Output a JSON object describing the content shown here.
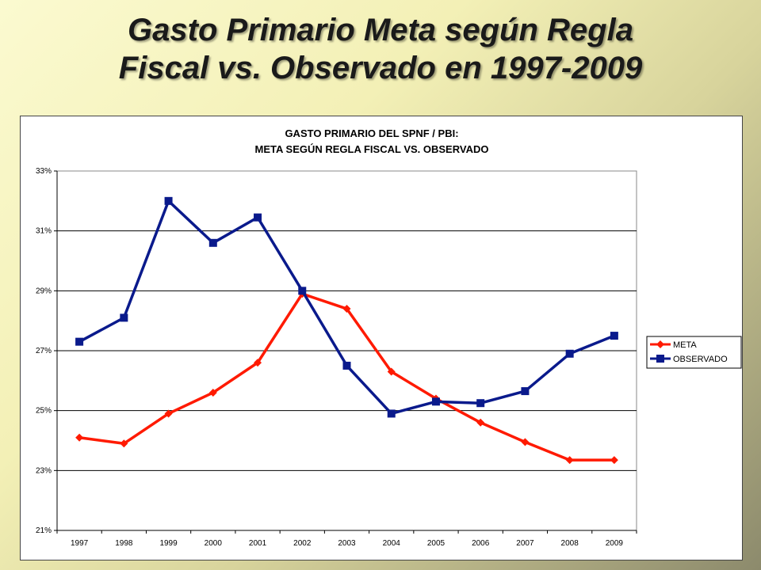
{
  "slide": {
    "title_line1": "Gasto Primario Meta según Regla",
    "title_line2": "Fiscal vs. Observado en 1997-2009"
  },
  "colors": {
    "meta": "#ff1a00",
    "observado": "#0a1a8c"
  },
  "chart_data": {
    "type": "line",
    "title_line1": "GASTO PRIMARIO DEL SPNF / PBI:",
    "title_line2": "META SEGÚN REGLA FISCAL VS. OBSERVADO",
    "categories": [
      "1997",
      "1998",
      "1999",
      "2000",
      "2001",
      "2002",
      "2003",
      "2004",
      "2005",
      "2006",
      "2007",
      "2008",
      "2009"
    ],
    "y_ticks": [
      "21%",
      "23%",
      "25%",
      "27%",
      "29%",
      "31%",
      "33%"
    ],
    "ylim": [
      21,
      33
    ],
    "grid": "horizontal",
    "legend_position": "right",
    "series": [
      {
        "name": "META",
        "marker": "diamond",
        "values": [
          24.1,
          23.9,
          24.9,
          25.6,
          26.6,
          28.9,
          28.4,
          26.3,
          25.4,
          24.6,
          23.95,
          23.35,
          23.35
        ]
      },
      {
        "name": "OBSERVADO",
        "marker": "square",
        "values": [
          27.3,
          28.1,
          32.0,
          30.6,
          31.45,
          29.0,
          26.5,
          24.9,
          25.3,
          25.25,
          25.65,
          26.9,
          27.5
        ]
      }
    ]
  }
}
